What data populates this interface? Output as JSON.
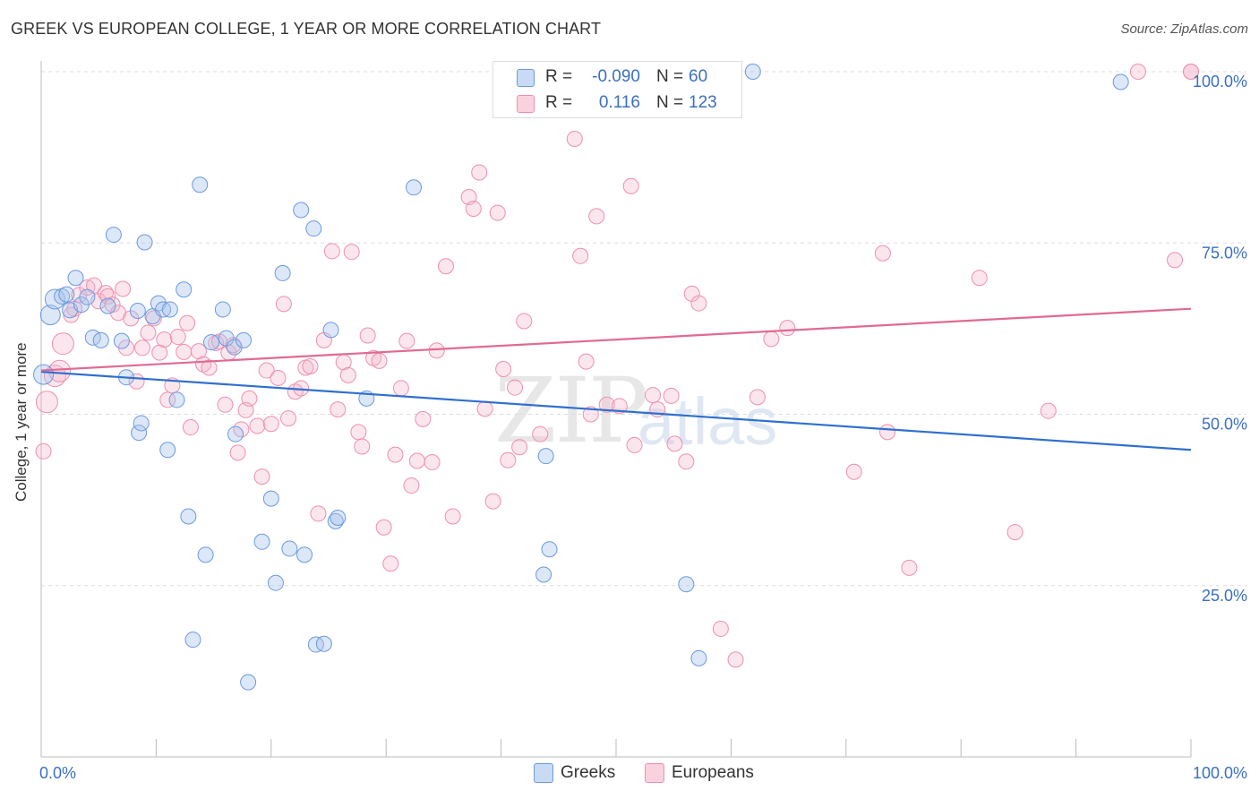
{
  "header": {
    "title": "GREEK VS EUROPEAN COLLEGE, 1 YEAR OR MORE CORRELATION CHART",
    "source": "Source: ZipAtlas.com"
  },
  "watermark": {
    "zip": "ZIP",
    "atlas": "atlas"
  },
  "legend": {
    "rows": [
      {
        "r_label": "R =",
        "r_value": "-0.090",
        "n_label": "N =",
        "n_value": "60",
        "color": "#a8c4ec"
      },
      {
        "r_label": "R =",
        "r_value": "0.116",
        "n_label": "N =",
        "n_value": "123",
        "color": "#f4b8cb"
      }
    ]
  },
  "bottom_legend": {
    "greeks": "Greeks",
    "europeans": "Europeans"
  },
  "chart_data": {
    "type": "scatter",
    "title": "GREEK VS EUROPEAN COLLEGE, 1 YEAR OR MORE CORRELATION CHART",
    "xlabel": "",
    "ylabel": "College, 1 year or more",
    "xlim": [
      0,
      100
    ],
    "ylim": [
      0,
      100
    ],
    "x_tick_labels": [
      "0.0%",
      "100.0%"
    ],
    "y_tick_labels": [
      "25.0%",
      "50.0%",
      "75.0%",
      "100.0%"
    ],
    "y_ticks": [
      25,
      50,
      75,
      100
    ],
    "grid": true,
    "colors": {
      "greeks": "#6b9ae0",
      "europeans": "#ef8fb0",
      "greeks_line": "#2f6fcf",
      "europeans_line": "#e06a95"
    },
    "series": [
      {
        "name": "Greeks",
        "trend": {
          "x": [
            0,
            100
          ],
          "y": [
            56.2,
            44.8
          ]
        },
        "points": [
          [
            0.2,
            55.8
          ],
          [
            0.8,
            64.5
          ],
          [
            1.2,
            66.8
          ],
          [
            1.8,
            67.2
          ],
          [
            2.2,
            67.5
          ],
          [
            2.5,
            65.2
          ],
          [
            3.0,
            69.9
          ],
          [
            3.5,
            66.0
          ],
          [
            4.0,
            67.1
          ],
          [
            4.5,
            61.2
          ],
          [
            5.2,
            60.8
          ],
          [
            5.8,
            65.8
          ],
          [
            6.3,
            76.2
          ],
          [
            7.0,
            60.7
          ],
          [
            7.4,
            55.4
          ],
          [
            8.4,
            65.1
          ],
          [
            8.5,
            47.3
          ],
          [
            8.7,
            48.7
          ],
          [
            9.0,
            75.1
          ],
          [
            9.7,
            64.3
          ],
          [
            10.2,
            66.2
          ],
          [
            10.6,
            65.3
          ],
          [
            11.0,
            44.8
          ],
          [
            11.2,
            65.3
          ],
          [
            11.8,
            52.1
          ],
          [
            12.4,
            68.2
          ],
          [
            12.8,
            35.1
          ],
          [
            13.2,
            17.1
          ],
          [
            13.8,
            83.5
          ],
          [
            14.3,
            29.5
          ],
          [
            14.8,
            60.5
          ],
          [
            15.8,
            65.3
          ],
          [
            16.1,
            61.1
          ],
          [
            16.8,
            59.8
          ],
          [
            16.9,
            47.1
          ],
          [
            17.6,
            60.8
          ],
          [
            18.0,
            10.9
          ],
          [
            19.2,
            31.4
          ],
          [
            20.0,
            37.7
          ],
          [
            20.4,
            25.4
          ],
          [
            21.0,
            70.6
          ],
          [
            21.6,
            30.4
          ],
          [
            22.6,
            79.8
          ],
          [
            22.9,
            29.5
          ],
          [
            23.7,
            77.1
          ],
          [
            23.9,
            16.4
          ],
          [
            24.6,
            16.5
          ],
          [
            25.2,
            62.3
          ],
          [
            25.6,
            34.4
          ],
          [
            25.8,
            34.9
          ],
          [
            28.3,
            52.3
          ],
          [
            32.4,
            83.1
          ],
          [
            43.7,
            26.6
          ],
          [
            43.9,
            43.9
          ],
          [
            44.2,
            30.3
          ],
          [
            50.2,
            100.0
          ],
          [
            56.1,
            25.2
          ],
          [
            57.2,
            14.4
          ],
          [
            61.9,
            100.0
          ],
          [
            93.9,
            98.5
          ]
        ]
      },
      {
        "name": "Europeans",
        "trend": {
          "x": [
            0,
            100
          ],
          "y": [
            56.4,
            65.4
          ]
        },
        "points": [
          [
            0.2,
            44.6
          ],
          [
            0.5,
            51.8
          ],
          [
            1.2,
            55.6
          ],
          [
            1.6,
            56.3
          ],
          [
            1.9,
            60.3
          ],
          [
            2.6,
            64.5
          ],
          [
            2.9,
            65.4
          ],
          [
            3.3,
            67.4
          ],
          [
            4.0,
            68.5
          ],
          [
            4.6,
            68.8
          ],
          [
            5.0,
            66.5
          ],
          [
            5.6,
            67.7
          ],
          [
            5.8,
            67.2
          ],
          [
            6.2,
            66.0
          ],
          [
            6.7,
            64.8
          ],
          [
            7.1,
            68.3
          ],
          [
            7.4,
            59.7
          ],
          [
            7.8,
            64.0
          ],
          [
            8.3,
            54.8
          ],
          [
            8.8,
            59.7
          ],
          [
            9.3,
            61.9
          ],
          [
            9.8,
            64.0
          ],
          [
            10.3,
            59.0
          ],
          [
            10.7,
            60.9
          ],
          [
            11.0,
            52.1
          ],
          [
            11.4,
            54.2
          ],
          [
            11.9,
            61.3
          ],
          [
            12.4,
            59.1
          ],
          [
            12.7,
            63.3
          ],
          [
            13.0,
            48.1
          ],
          [
            13.7,
            59.2
          ],
          [
            14.1,
            57.3
          ],
          [
            14.6,
            56.8
          ],
          [
            15.2,
            60.4
          ],
          [
            15.5,
            60.6
          ],
          [
            16.0,
            51.4
          ],
          [
            16.3,
            59.0
          ],
          [
            16.7,
            60.1
          ],
          [
            17.1,
            44.4
          ],
          [
            17.4,
            47.8
          ],
          [
            17.8,
            50.6
          ],
          [
            18.1,
            52.3
          ],
          [
            18.8,
            48.3
          ],
          [
            19.2,
            40.9
          ],
          [
            19.6,
            56.4
          ],
          [
            20.0,
            48.6
          ],
          [
            20.6,
            55.3
          ],
          [
            21.1,
            66.1
          ],
          [
            21.5,
            49.4
          ],
          [
            22.1,
            53.3
          ],
          [
            22.6,
            53.8
          ],
          [
            23.0,
            56.8
          ],
          [
            23.4,
            57.0
          ],
          [
            24.1,
            35.5
          ],
          [
            24.6,
            60.8
          ],
          [
            25.3,
            73.8
          ],
          [
            25.8,
            50.7
          ],
          [
            26.3,
            57.6
          ],
          [
            26.7,
            55.7
          ],
          [
            27.0,
            73.7
          ],
          [
            27.6,
            47.4
          ],
          [
            27.9,
            45.3
          ],
          [
            28.4,
            61.5
          ],
          [
            28.9,
            58.2
          ],
          [
            29.4,
            57.8
          ],
          [
            29.8,
            33.5
          ],
          [
            30.4,
            28.2
          ],
          [
            30.8,
            44.1
          ],
          [
            31.3,
            53.8
          ],
          [
            31.8,
            60.7
          ],
          [
            32.2,
            39.6
          ],
          [
            32.7,
            43.2
          ],
          [
            33.2,
            49.3
          ],
          [
            34.0,
            43.0
          ],
          [
            34.4,
            59.3
          ],
          [
            35.2,
            71.6
          ],
          [
            35.8,
            35.1
          ],
          [
            37.2,
            81.7
          ],
          [
            37.6,
            80.0
          ],
          [
            38.1,
            85.3
          ],
          [
            38.6,
            50.8
          ],
          [
            39.3,
            37.3
          ],
          [
            39.7,
            79.4
          ],
          [
            40.2,
            56.6
          ],
          [
            40.6,
            43.3
          ],
          [
            41.2,
            53.9
          ],
          [
            41.6,
            45.2
          ],
          [
            42.0,
            63.6
          ],
          [
            43.4,
            47.1
          ],
          [
            45.0,
            100.0
          ],
          [
            46.4,
            90.2
          ],
          [
            46.9,
            73.1
          ],
          [
            47.4,
            57.7
          ],
          [
            47.8,
            50.0
          ],
          [
            48.3,
            78.9
          ],
          [
            49.2,
            51.4
          ],
          [
            50.3,
            51.2
          ],
          [
            51.3,
            83.3
          ],
          [
            51.6,
            45.5
          ],
          [
            53.2,
            52.8
          ],
          [
            53.6,
            50.7
          ],
          [
            54.8,
            52.7
          ],
          [
            55.1,
            45.7
          ],
          [
            56.1,
            43.1
          ],
          [
            56.6,
            67.6
          ],
          [
            57.2,
            66.2
          ],
          [
            59.1,
            18.7
          ],
          [
            59.6,
            100.0
          ],
          [
            60.4,
            14.2
          ],
          [
            62.3,
            52.5
          ],
          [
            63.5,
            61.0
          ],
          [
            64.9,
            62.6
          ],
          [
            70.7,
            41.6
          ],
          [
            73.2,
            73.5
          ],
          [
            73.6,
            47.4
          ],
          [
            75.5,
            27.6
          ],
          [
            81.6,
            69.9
          ],
          [
            84.7,
            32.8
          ],
          [
            87.6,
            50.5
          ],
          [
            95.4,
            100.0
          ],
          [
            98.6,
            72.5
          ],
          [
            100.0,
            100.0
          ],
          [
            100.0,
            100.0
          ]
        ]
      }
    ]
  }
}
